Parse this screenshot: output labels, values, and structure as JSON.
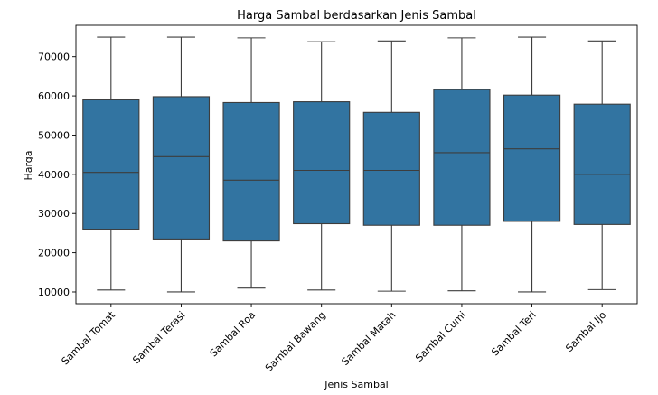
{
  "chart_data": {
    "type": "box",
    "title": "Harga Sambal berdasarkan Jenis Sambal",
    "xlabel": "Jenis Sambal",
    "ylabel": "Harga",
    "ylim": [
      7000,
      78000
    ],
    "yticks": [
      10000,
      20000,
      30000,
      40000,
      50000,
      60000,
      70000
    ],
    "grid": false,
    "box_color": "#3274a1",
    "edge_color": "#3d3d3d",
    "categories": [
      "Sambal Tomat",
      "Sambal Terasi",
      "Sambal Roa",
      "Sambal Bawang",
      "Sambal Matah",
      "Sambal Cumi",
      "Sambal Teri",
      "Sambal Ijo"
    ],
    "boxes": [
      {
        "category": "Sambal Tomat",
        "min": 10500,
        "q1": 26000,
        "median": 40500,
        "q3": 59000,
        "max": 75000
      },
      {
        "category": "Sambal Terasi",
        "min": 10000,
        "q1": 23500,
        "median": 44500,
        "q3": 59800,
        "max": 75000
      },
      {
        "category": "Sambal Roa",
        "min": 11000,
        "q1": 23000,
        "median": 38500,
        "q3": 58300,
        "max": 74800
      },
      {
        "category": "Sambal Bawang",
        "min": 10500,
        "q1": 27400,
        "median": 41000,
        "q3": 58500,
        "max": 73800
      },
      {
        "category": "Sambal Matah",
        "min": 10200,
        "q1": 27000,
        "median": 41000,
        "q3": 55800,
        "max": 74000
      },
      {
        "category": "Sambal Cumi",
        "min": 10300,
        "q1": 27000,
        "median": 45500,
        "q3": 61600,
        "max": 74800
      },
      {
        "category": "Sambal Teri",
        "min": 10000,
        "q1": 28000,
        "median": 46500,
        "q3": 60200,
        "max": 75000
      },
      {
        "category": "Sambal Ijo",
        "min": 10600,
        "q1": 27200,
        "median": 40000,
        "q3": 57900,
        "max": 74000
      }
    ]
  }
}
